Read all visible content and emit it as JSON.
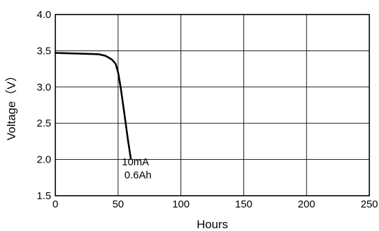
{
  "chart_data": {
    "type": "line",
    "title": "",
    "xlabel": "Hours",
    "ylabel": "Voltage（V）",
    "xlim": [
      0,
      250
    ],
    "ylim": [
      1.5,
      4.0
    ],
    "x_ticks": [
      0,
      50,
      100,
      150,
      200,
      250
    ],
    "x_tick_labels": [
      "0",
      "50",
      "100",
      "150",
      "200",
      "250"
    ],
    "y_ticks": [
      1.5,
      2.0,
      2.5,
      3.0,
      3.5,
      4.0
    ],
    "y_tick_labels": [
      "1.5",
      "2.0",
      "2.5",
      "3.0",
      "3.5",
      "4.0"
    ],
    "grid": true,
    "legend": "none",
    "line_color": "#000000",
    "series": [
      {
        "x": [
          0,
          10,
          20,
          30,
          35,
          40,
          45,
          48,
          50,
          52,
          54,
          56,
          58,
          60
        ],
        "y": [
          3.47,
          3.465,
          3.46,
          3.455,
          3.45,
          3.43,
          3.38,
          3.32,
          3.2,
          3.0,
          2.75,
          2.5,
          2.25,
          2.02
        ]
      }
    ],
    "annotations": [
      {
        "text": "10mA",
        "x": 53,
        "y": 1.92
      },
      {
        "text": "0.6Ah",
        "x": 55,
        "y": 1.74
      }
    ]
  }
}
